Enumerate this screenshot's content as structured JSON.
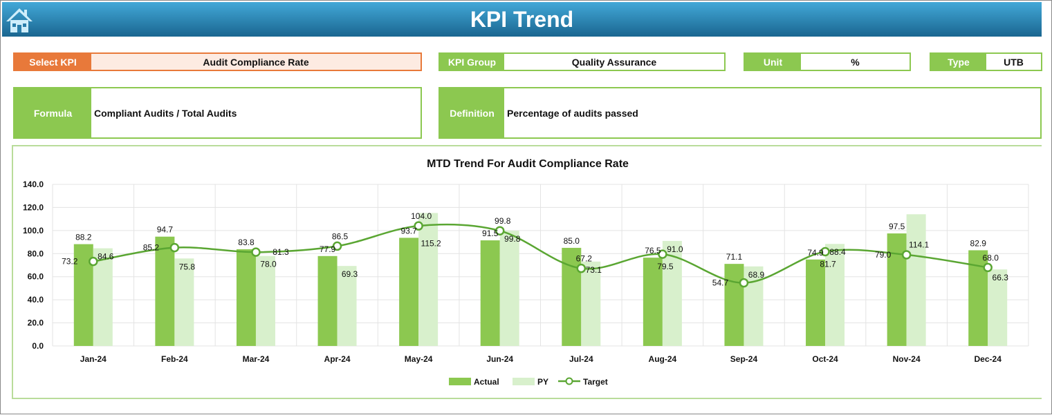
{
  "header": {
    "title": "KPI Trend",
    "home_icon": "home-icon"
  },
  "fields": {
    "select_kpi": {
      "label": "Select KPI",
      "value": "Audit Compliance Rate"
    },
    "kpi_group": {
      "label": "KPI Group",
      "value": "Quality Assurance"
    },
    "unit": {
      "label": "Unit",
      "value": "%"
    },
    "type": {
      "label": "Type",
      "value": "UTB"
    },
    "formula": {
      "label": "Formula",
      "value": "Compliant Audits / Total Audits"
    },
    "definition": {
      "label": "Definition",
      "value": "Percentage of audits passed"
    }
  },
  "colors": {
    "actual": "#8cc850",
    "py": "#d8f0cc",
    "target": "#5aa632",
    "select": "#e8793a"
  },
  "chart_data": {
    "type": "bar",
    "title": "MTD Trend For Audit Compliance Rate",
    "categories": [
      "Jan-24",
      "Feb-24",
      "Mar-24",
      "Apr-24",
      "May-24",
      "Jun-24",
      "Jul-24",
      "Aug-24",
      "Sep-24",
      "Oct-24",
      "Nov-24",
      "Dec-24"
    ],
    "series": [
      {
        "name": "Actual",
        "type": "bar",
        "values": [
          88.2,
          94.7,
          83.8,
          77.9,
          93.7,
          91.5,
          85.0,
          76.5,
          71.1,
          74.9,
          97.5,
          82.9
        ]
      },
      {
        "name": "PY",
        "type": "bar",
        "values": [
          84.6,
          75.8,
          78.0,
          69.3,
          115.2,
          99.8,
          73.1,
          91.0,
          68.9,
          88.4,
          114.1,
          66.3
        ]
      },
      {
        "name": "Target",
        "type": "line",
        "values": [
          73.2,
          85.2,
          81.3,
          86.5,
          104.0,
          99.8,
          67.2,
          79.5,
          54.7,
          81.7,
          79.0,
          68.0
        ]
      }
    ],
    "ylim": [
      0,
      140
    ],
    "yticks": [
      "0.0",
      "20.0",
      "40.0",
      "60.0",
      "80.0",
      "100.0",
      "120.0",
      "140.0"
    ],
    "grid": true,
    "legend": "bottom"
  }
}
